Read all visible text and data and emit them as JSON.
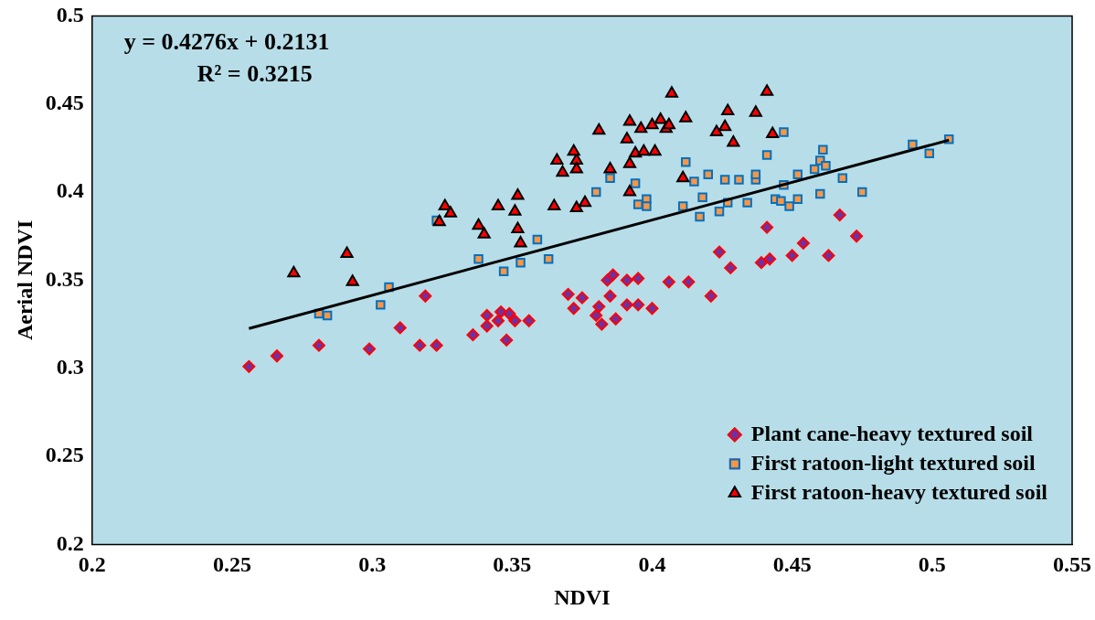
{
  "chart_data": {
    "type": "scatter",
    "xlabel": "NDVI",
    "ylabel": "Aerial NDVI",
    "xlim": [
      0.2,
      0.55
    ],
    "xticks": [
      0.2,
      0.25,
      0.3,
      0.35,
      0.4,
      0.45,
      0.5,
      0.55
    ],
    "ylim": [
      0.2,
      0.5
    ],
    "yticks": [
      0.2,
      0.25,
      0.3,
      0.35,
      0.4,
      0.45,
      0.5
    ],
    "grid": false,
    "legend": "bottom right",
    "annotations": [
      "y = 0.4276x + 0.2131",
      "R² = 0.3215"
    ],
    "series": [
      {
        "name": "Plant cane-heavy textured soil",
        "color": "#7030a0",
        "marker": "diamond",
        "x": [
          0.256,
          0.266,
          0.281,
          0.299,
          0.31,
          0.317,
          0.323,
          0.319,
          0.336,
          0.341,
          0.341,
          0.345,
          0.346,
          0.349,
          0.351,
          0.356,
          0.348,
          0.37,
          0.375,
          0.372,
          0.38,
          0.381,
          0.382,
          0.384,
          0.386,
          0.385,
          0.387,
          0.391,
          0.391,
          0.395,
          0.395,
          0.4,
          0.406,
          0.413,
          0.421,
          0.424,
          0.428,
          0.439,
          0.442,
          0.441,
          0.45,
          0.454,
          0.463,
          0.467,
          0.473
        ],
        "values": [
          0.301,
          0.307,
          0.313,
          0.311,
          0.323,
          0.313,
          0.313,
          0.341,
          0.319,
          0.324,
          0.33,
          0.327,
          0.332,
          0.331,
          0.327,
          0.327,
          0.316,
          0.342,
          0.34,
          0.334,
          0.33,
          0.335,
          0.325,
          0.35,
          0.353,
          0.341,
          0.328,
          0.35,
          0.336,
          0.351,
          0.336,
          0.334,
          0.349,
          0.349,
          0.341,
          0.366,
          0.357,
          0.36,
          0.362,
          0.38,
          0.364,
          0.371,
          0.364,
          0.387,
          0.375
        ]
      },
      {
        "name": "First ratoon-light textured soil",
        "color": "#f79646",
        "marker": "square",
        "x": [
          0.281,
          0.284,
          0.303,
          0.306,
          0.323,
          0.338,
          0.347,
          0.353,
          0.359,
          0.363,
          0.38,
          0.385,
          0.394,
          0.395,
          0.398,
          0.398,
          0.412,
          0.415,
          0.42,
          0.426,
          0.431,
          0.437,
          0.437,
          0.411,
          0.418,
          0.417,
          0.424,
          0.427,
          0.434,
          0.441,
          0.447,
          0.447,
          0.444,
          0.446,
          0.449,
          0.452,
          0.452,
          0.458,
          0.46,
          0.461,
          0.462,
          0.46,
          0.468,
          0.475,
          0.493,
          0.499,
          0.506
        ],
        "values": [
          0.331,
          0.33,
          0.336,
          0.346,
          0.384,
          0.362,
          0.355,
          0.36,
          0.373,
          0.362,
          0.4,
          0.408,
          0.405,
          0.393,
          0.396,
          0.392,
          0.417,
          0.406,
          0.41,
          0.407,
          0.407,
          0.407,
          0.41,
          0.392,
          0.397,
          0.386,
          0.389,
          0.394,
          0.394,
          0.421,
          0.434,
          0.404,
          0.396,
          0.395,
          0.392,
          0.396,
          0.41,
          0.413,
          0.418,
          0.424,
          0.415,
          0.399,
          0.408,
          0.4,
          0.427,
          0.422,
          0.43
        ]
      },
      {
        "name": "First ratoon-heavy textured soil",
        "color": "#ff0000",
        "marker": "triangle",
        "x": [
          0.272,
          0.291,
          0.293,
          0.326,
          0.328,
          0.324,
          0.338,
          0.34,
          0.345,
          0.352,
          0.351,
          0.352,
          0.353,
          0.365,
          0.366,
          0.368,
          0.373,
          0.376,
          0.373,
          0.372,
          0.373,
          0.381,
          0.385,
          0.392,
          0.391,
          0.392,
          0.392,
          0.394,
          0.396,
          0.4,
          0.403,
          0.405,
          0.397,
          0.401,
          0.406,
          0.412,
          0.407,
          0.411,
          0.423,
          0.426,
          0.427,
          0.429,
          0.437,
          0.441,
          0.443
        ],
        "values": [
          0.354,
          0.365,
          0.349,
          0.392,
          0.388,
          0.383,
          0.381,
          0.376,
          0.392,
          0.398,
          0.389,
          0.379,
          0.371,
          0.392,
          0.418,
          0.411,
          0.391,
          0.394,
          0.418,
          0.423,
          0.413,
          0.435,
          0.413,
          0.44,
          0.43,
          0.416,
          0.4,
          0.422,
          0.436,
          0.438,
          0.441,
          0.436,
          0.423,
          0.423,
          0.438,
          0.442,
          0.456,
          0.408,
          0.434,
          0.437,
          0.446,
          0.428,
          0.445,
          0.457,
          0.433
        ]
      },
      {
        "type": "line",
        "color": "#000000",
        "x": [
          0.256,
          0.506
        ],
        "values": [
          0.3226,
          0.4295
        ]
      }
    ]
  }
}
